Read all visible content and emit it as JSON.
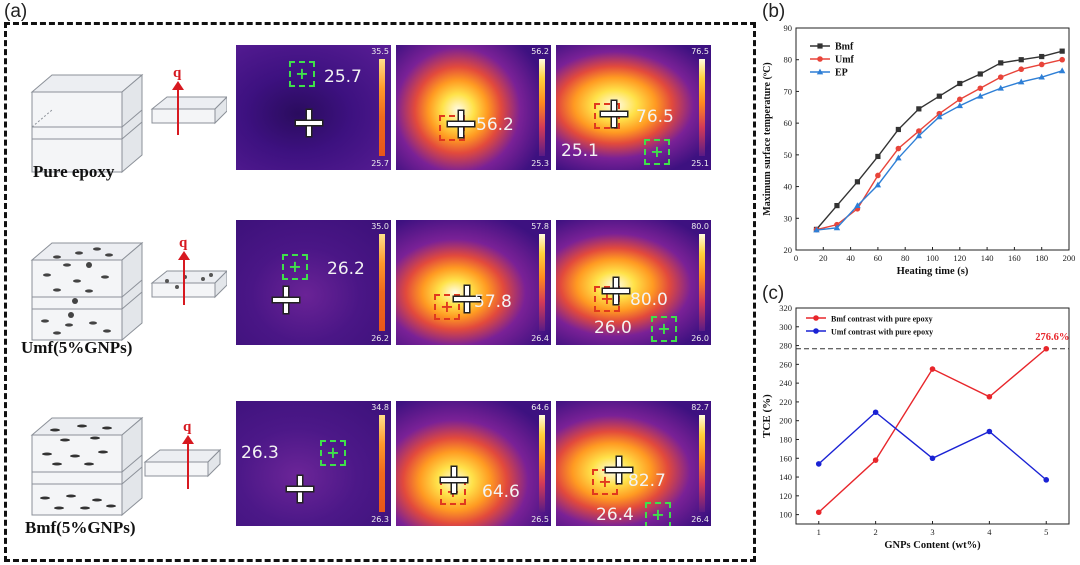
{
  "panel_labels": {
    "a": "(a)",
    "b": "(b)",
    "c": "(c)"
  },
  "panel_a": {
    "q_label": "q",
    "rows": [
      {
        "sample": "Pure epoxy",
        "images": [
          {
            "scale_max": "35.5",
            "scale_min": "25.7",
            "readouts": [
              "25.7"
            ]
          },
          {
            "scale_max": "56.2",
            "scale_min": "25.3",
            "readouts": [
              "56.2"
            ]
          },
          {
            "scale_max": "76.5",
            "scale_min": "25.1",
            "readouts": [
              "76.5",
              "25.1"
            ]
          }
        ]
      },
      {
        "sample": "Umf(5%GNPs)",
        "images": [
          {
            "scale_max": "35.0",
            "scale_min": "26.2",
            "readouts": [
              "26.2"
            ]
          },
          {
            "scale_max": "57.8",
            "scale_min": "26.4",
            "readouts": [
              "57.8"
            ]
          },
          {
            "scale_max": "80.0",
            "scale_min": "26.0",
            "readouts": [
              "80.0",
              "26.0"
            ]
          }
        ]
      },
      {
        "sample": "Bmf(5%GNPs)",
        "images": [
          {
            "scale_max": "34.8",
            "scale_min": "26.3",
            "readouts": [
              "26.3"
            ]
          },
          {
            "scale_max": "64.6",
            "scale_min": "26.5",
            "readouts": [
              "64.6"
            ]
          },
          {
            "scale_max": "82.7",
            "scale_min": "26.4",
            "readouts": [
              "82.7",
              "26.4"
            ]
          }
        ]
      }
    ]
  },
  "chart_data": [
    {
      "type": "line",
      "xlabel": "Heating time (s)",
      "ylabel": "Maximum surface temperature (ºC)",
      "xlim": [
        0,
        200
      ],
      "ylim": [
        20,
        90
      ],
      "xticks": [
        "0",
        "20",
        "40",
        "60",
        "80",
        "100",
        "120",
        "140",
        "160",
        "180",
        "200"
      ],
      "yticks": [
        "20",
        "30",
        "40",
        "50",
        "60",
        "70",
        "80",
        "90"
      ],
      "x": [
        15,
        30,
        45,
        60,
        75,
        90,
        105,
        120,
        135,
        150,
        165,
        180,
        195
      ],
      "legend_position": "top-left",
      "series": [
        {
          "name": "Bmf",
          "color": "#333333",
          "marker": "square",
          "values": [
            26.5,
            34,
            41.5,
            49.5,
            58,
            64.5,
            68.5,
            72.5,
            75.5,
            79,
            80,
            81,
            82.7
          ]
        },
        {
          "name": "Umf",
          "color": "#e8443a",
          "marker": "circle",
          "values": [
            26.4,
            28,
            33,
            43.5,
            52,
            57.5,
            63,
            67.5,
            71,
            74.5,
            77,
            78.5,
            80
          ]
        },
        {
          "name": "EP",
          "color": "#2e7fd6",
          "marker": "triangle",
          "values": [
            26.3,
            27,
            34,
            40.5,
            49,
            56,
            62,
            65.5,
            68.5,
            71,
            73,
            74.5,
            76.5
          ]
        }
      ]
    },
    {
      "type": "line",
      "xlabel": "GNPs Content (wt%)",
      "ylabel": "TCE (%)",
      "xlim": [
        0.6,
        5.4
      ],
      "ylim": [
        90,
        320
      ],
      "xticks": [
        "1",
        "2",
        "3",
        "4",
        "5"
      ],
      "yticks": [
        "100",
        "120",
        "140",
        "160",
        "180",
        "200",
        "220",
        "240",
        "260",
        "280",
        "300",
        "320"
      ],
      "x": [
        1,
        2,
        3,
        4,
        5
      ],
      "legend_position": "top-left",
      "reference_line": 276.6,
      "annotation": "276.6%",
      "series": [
        {
          "name": "Bmf contrast with pure epoxy",
          "color": "#e8262b",
          "marker": "circle",
          "values": [
            102.5,
            158,
            255,
            225.5,
            276.6
          ]
        },
        {
          "name": "Umf contrast with pure epoxy",
          "color": "#1a22d4",
          "marker": "circle",
          "values": [
            154,
            209,
            160,
            188.5,
            137
          ]
        }
      ]
    }
  ]
}
